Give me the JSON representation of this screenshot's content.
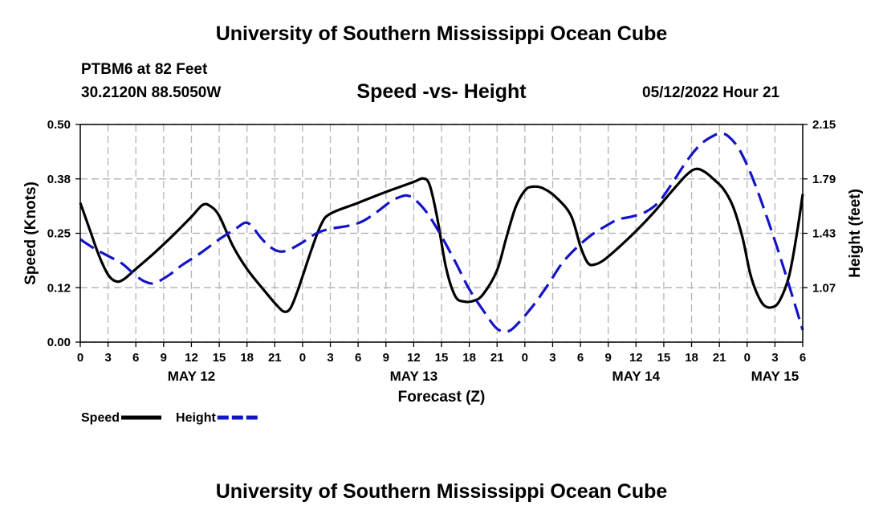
{
  "header": {
    "title": "University of Southern Mississippi Ocean Cube",
    "station": "PTBM6 at 82 Feet",
    "coordinates": "30.2120N  88.5050W",
    "subtitle": "Speed -vs- Height",
    "datetime": "05/12/2022 Hour 21"
  },
  "footer": {
    "title": "University of Southern Mississippi Ocean Cube"
  },
  "colors": {
    "speed": "#000000",
    "height": "#1414c8",
    "grid": "#b4b4b4"
  },
  "chart_data": {
    "type": "line",
    "xlabel": "Forecast (Z)",
    "ylabel_left": "Speed (Knots)",
    "ylabel_right": "Height (feet)",
    "x_range_hours": [
      0,
      78
    ],
    "ylim_left": [
      0.0,
      0.5
    ],
    "ylim_right": [
      0.71,
      2.15
    ],
    "left_ticks": [
      {
        "value": 0.0,
        "label": "0.00"
      },
      {
        "value": 0.125,
        "label": "0.12"
      },
      {
        "value": 0.25,
        "label": "0.25"
      },
      {
        "value": 0.375,
        "label": "0.38"
      },
      {
        "value": 0.5,
        "label": "0.50"
      }
    ],
    "right_ticks": [
      {
        "value": 1.07,
        "label": "1.07"
      },
      {
        "value": 1.43,
        "label": "1.43"
      },
      {
        "value": 1.79,
        "label": "1.79"
      },
      {
        "value": 2.15,
        "label": "2.15"
      }
    ],
    "x_ticks": [
      {
        "hour": 0,
        "label": "0"
      },
      {
        "hour": 3,
        "label": "3"
      },
      {
        "hour": 6,
        "label": "6"
      },
      {
        "hour": 9,
        "label": "9"
      },
      {
        "hour": 12,
        "label": "12"
      },
      {
        "hour": 15,
        "label": "15"
      },
      {
        "hour": 18,
        "label": "18"
      },
      {
        "hour": 21,
        "label": "21"
      },
      {
        "hour": 24,
        "label": "0"
      },
      {
        "hour": 27,
        "label": "3"
      },
      {
        "hour": 30,
        "label": "6"
      },
      {
        "hour": 33,
        "label": "9"
      },
      {
        "hour": 36,
        "label": "12"
      },
      {
        "hour": 39,
        "label": "15"
      },
      {
        "hour": 42,
        "label": "18"
      },
      {
        "hour": 45,
        "label": "21"
      },
      {
        "hour": 48,
        "label": "0"
      },
      {
        "hour": 51,
        "label": "3"
      },
      {
        "hour": 54,
        "label": "6"
      },
      {
        "hour": 57,
        "label": "9"
      },
      {
        "hour": 60,
        "label": "12"
      },
      {
        "hour": 63,
        "label": "15"
      },
      {
        "hour": 66,
        "label": "18"
      },
      {
        "hour": 69,
        "label": "21"
      },
      {
        "hour": 72,
        "label": "0"
      },
      {
        "hour": 75,
        "label": "3"
      },
      {
        "hour": 78,
        "label": "6"
      }
    ],
    "day_labels": [
      {
        "hour": 12,
        "label": "MAY 12"
      },
      {
        "hour": 36,
        "label": "MAY 13"
      },
      {
        "hour": 60,
        "label": "MAY 14"
      },
      {
        "hour": 75,
        "label": "MAY 15"
      }
    ],
    "series": [
      {
        "name": "Speed",
        "axis": "left",
        "color": "#000000",
        "dash": false,
        "points": [
          [
            0,
            0.32
          ],
          [
            1,
            0.26
          ],
          [
            2,
            0.2
          ],
          [
            3,
            0.155
          ],
          [
            3.8,
            0.14
          ],
          [
            4.6,
            0.143
          ],
          [
            6,
            0.168
          ],
          [
            8,
            0.205
          ],
          [
            10,
            0.245
          ],
          [
            12,
            0.288
          ],
          [
            13.2,
            0.315
          ],
          [
            14,
            0.313
          ],
          [
            15,
            0.29
          ],
          [
            16.5,
            0.22
          ],
          [
            18,
            0.168
          ],
          [
            20,
            0.115
          ],
          [
            21.2,
            0.085
          ],
          [
            22,
            0.07
          ],
          [
            22.7,
            0.078
          ],
          [
            23.5,
            0.12
          ],
          [
            25,
            0.215
          ],
          [
            26,
            0.27
          ],
          [
            27,
            0.295
          ],
          [
            30,
            0.32
          ],
          [
            33,
            0.345
          ],
          [
            36,
            0.368
          ],
          [
            37,
            0.376
          ],
          [
            37.7,
            0.362
          ],
          [
            38.5,
            0.29
          ],
          [
            39.5,
            0.17
          ],
          [
            40.5,
            0.105
          ],
          [
            41.5,
            0.093
          ],
          [
            42.5,
            0.095
          ],
          [
            43.5,
            0.11
          ],
          [
            45,
            0.165
          ],
          [
            46,
            0.24
          ],
          [
            47,
            0.31
          ],
          [
            48,
            0.348
          ],
          [
            48.8,
            0.357
          ],
          [
            50,
            0.353
          ],
          [
            51.5,
            0.33
          ],
          [
            53,
            0.29
          ],
          [
            54,
            0.22
          ],
          [
            54.8,
            0.182
          ],
          [
            55.5,
            0.178
          ],
          [
            56.5,
            0.188
          ],
          [
            58,
            0.215
          ],
          [
            60,
            0.255
          ],
          [
            62,
            0.3
          ],
          [
            64,
            0.35
          ],
          [
            65.5,
            0.385
          ],
          [
            66.5,
            0.398
          ],
          [
            67.5,
            0.39
          ],
          [
            68.5,
            0.372
          ],
          [
            69.5,
            0.35
          ],
          [
            70.5,
            0.31
          ],
          [
            71.5,
            0.24
          ],
          [
            72.3,
            0.16
          ],
          [
            73,
            0.115
          ],
          [
            73.8,
            0.085
          ],
          [
            74.7,
            0.08
          ],
          [
            75.5,
            0.095
          ],
          [
            76.5,
            0.15
          ],
          [
            77.3,
            0.24
          ],
          [
            78,
            0.34
          ]
        ]
      },
      {
        "name": "Height",
        "axis": "right",
        "color": "#1414c8",
        "dash": true,
        "points": [
          [
            0,
            1.39
          ],
          [
            1.5,
            1.33
          ],
          [
            3,
            1.28
          ],
          [
            4.5,
            1.23
          ],
          [
            6,
            1.15
          ],
          [
            7,
            1.11
          ],
          [
            8,
            1.1
          ],
          [
            9.5,
            1.15
          ],
          [
            11,
            1.22
          ],
          [
            13,
            1.3
          ],
          [
            15,
            1.39
          ],
          [
            17,
            1.47
          ],
          [
            17.8,
            1.5
          ],
          [
            18.5,
            1.48
          ],
          [
            19.5,
            1.4
          ],
          [
            20.5,
            1.34
          ],
          [
            21.5,
            1.31
          ],
          [
            22.5,
            1.32
          ],
          [
            24,
            1.37
          ],
          [
            25.5,
            1.43
          ],
          [
            27,
            1.46
          ],
          [
            29,
            1.48
          ],
          [
            30.5,
            1.51
          ],
          [
            32,
            1.57
          ],
          [
            33.5,
            1.64
          ],
          [
            34.5,
            1.67
          ],
          [
            35.3,
            1.68
          ],
          [
            36.2,
            1.65
          ],
          [
            37.5,
            1.56
          ],
          [
            39,
            1.41
          ],
          [
            40.5,
            1.24
          ],
          [
            42,
            1.06
          ],
          [
            43.5,
            0.92
          ],
          [
            44.8,
            0.81
          ],
          [
            45.7,
            0.78
          ],
          [
            46.5,
            0.79
          ],
          [
            47.5,
            0.85
          ],
          [
            49,
            0.96
          ],
          [
            50.5,
            1.09
          ],
          [
            52,
            1.23
          ],
          [
            53.5,
            1.33
          ],
          [
            55,
            1.41
          ],
          [
            56.5,
            1.47
          ],
          [
            58,
            1.52
          ],
          [
            59.5,
            1.54
          ],
          [
            61,
            1.57
          ],
          [
            62.5,
            1.64
          ],
          [
            64,
            1.77
          ],
          [
            65.5,
            1.91
          ],
          [
            67,
            2.02
          ],
          [
            68.5,
            2.08
          ],
          [
            69.3,
            2.09
          ],
          [
            70,
            2.07
          ],
          [
            71,
            2.0
          ],
          [
            72,
            1.88
          ],
          [
            73,
            1.73
          ],
          [
            74,
            1.56
          ],
          [
            75,
            1.38
          ],
          [
            76,
            1.19
          ],
          [
            77,
            0.99
          ],
          [
            78,
            0.79
          ]
        ]
      }
    ],
    "legend": [
      {
        "name": "Speed",
        "label": "Speed",
        "color": "#000000",
        "dash": false
      },
      {
        "name": "Height",
        "label": "Height",
        "color": "#1414c8",
        "dash": true
      }
    ]
  }
}
